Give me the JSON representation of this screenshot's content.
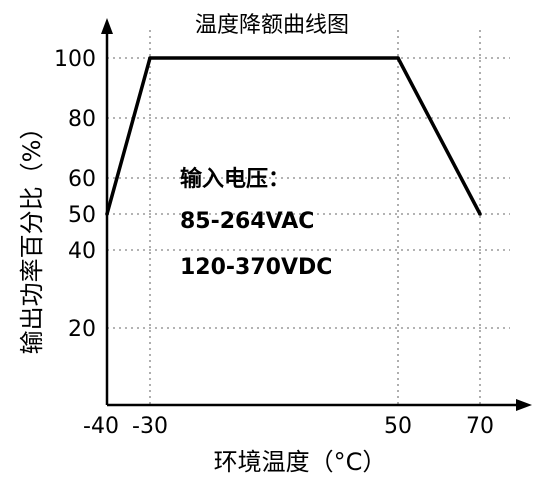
{
  "chart_data": {
    "type": "line",
    "title": "温度降额曲线图",
    "xlabel": "环境温度（°C）",
    "ylabel": "输出功率百分比（%）",
    "x_ticks": [
      "-40",
      "-30",
      "50",
      "70"
    ],
    "y_ticks": [
      "20",
      "40",
      "50",
      "60",
      "80",
      "100"
    ],
    "series": [
      {
        "x": [
          -40,
          -30,
          50,
          70
        ],
        "y": [
          50,
          100,
          100,
          50
        ]
      }
    ],
    "xlim": [
      -40,
      75
    ],
    "ylim": [
      0,
      110
    ],
    "grid": true,
    "annotation": {
      "heading": "输入电压：",
      "lines": [
        "85-264VAC",
        "120-370VDC"
      ]
    }
  }
}
